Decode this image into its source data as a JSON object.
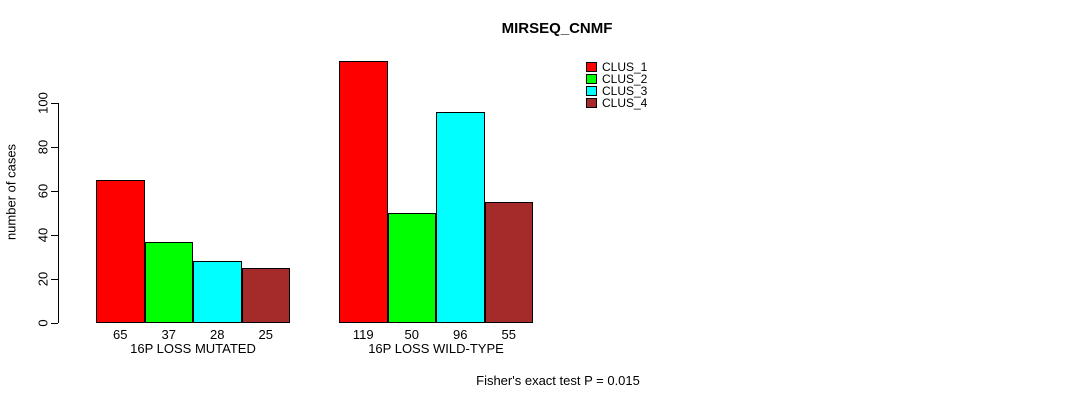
{
  "title": "MIRSEQ_CNMF",
  "footnote": "Fisher's exact test P = 0.015",
  "chart_data": {
    "type": "bar",
    "title": "MIRSEQ_CNMF",
    "ylabel": "number of cases",
    "xlabel": "",
    "ylim": [
      0,
      100
    ],
    "yticks": [
      0,
      20,
      40,
      60,
      80,
      100
    ],
    "grid": false,
    "legend_position": "top-right",
    "bar_value_labels_shown": true,
    "categories": [
      "16P LOSS MUTATED",
      "16P LOSS WILD-TYPE"
    ],
    "series": [
      {
        "name": "CLUS_1",
        "color": "#FF0000",
        "values": [
          65,
          119
        ]
      },
      {
        "name": "CLUS_2",
        "color": "#00FF00",
        "values": [
          37,
          50
        ]
      },
      {
        "name": "CLUS_3",
        "color": "#00FFFF",
        "values": [
          28,
          96
        ]
      },
      {
        "name": "CLUS_4",
        "color": "#A52A2A",
        "values": [
          25,
          55
        ]
      }
    ],
    "annotation": "Fisher's exact test P = 0.015"
  }
}
